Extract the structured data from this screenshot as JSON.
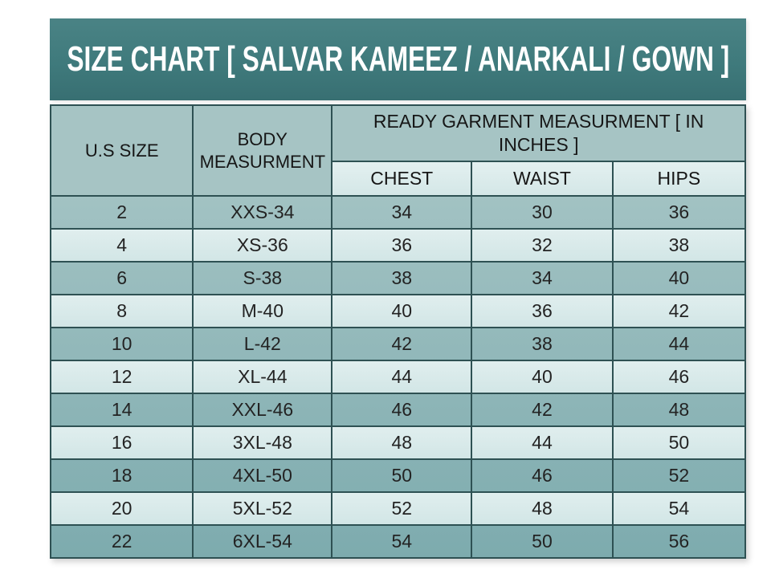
{
  "chart_data": {
    "type": "table",
    "title": "SIZE CHART [ SALVAR KAMEEZ / ANARKALI / GOWN ]",
    "header": {
      "us_size": "U.S SIZE",
      "body_measurement": "BODY MEASURMENT",
      "ready_garment_group": "READY GARMENT MEASURMENT [ IN INCHES ]",
      "sub_columns": [
        "CHEST",
        "WAIST",
        "HIPS"
      ]
    },
    "rows": [
      [
        "2",
        "XXS-34",
        "34",
        "30",
        "36"
      ],
      [
        "4",
        "XS-36",
        "36",
        "32",
        "38"
      ],
      [
        "6",
        "S-38",
        "38",
        "34",
        "40"
      ],
      [
        "8",
        "M-40",
        "40",
        "36",
        "42"
      ],
      [
        "10",
        "L-42",
        "42",
        "38",
        "44"
      ],
      [
        "12",
        "XL-44",
        "44",
        "40",
        "46"
      ],
      [
        "14",
        "XXL-46",
        "46",
        "42",
        "48"
      ],
      [
        "16",
        "3XL-48",
        "48",
        "44",
        "50"
      ],
      [
        "18",
        "4XL-50",
        "50",
        "46",
        "52"
      ],
      [
        "20",
        "5XL-52",
        "52",
        "48",
        "54"
      ],
      [
        "22",
        "6XL-54",
        "54",
        "50",
        "56"
      ]
    ],
    "layout": {
      "row_striping": "alternating dark teal / light mint, starting dark",
      "grid": true
    }
  },
  "colors": {
    "band": "#3f7a7c",
    "band_light": "#4a8385",
    "band_dark": "#386f72",
    "border": "#2e5153",
    "header_cell": "#a6c4c4",
    "subheader_cell": "#dcecec",
    "row_dark": "#9ec0c0",
    "row_light": "#d9eaea",
    "title_text": "#ffffff",
    "body_text": "#232323"
  }
}
